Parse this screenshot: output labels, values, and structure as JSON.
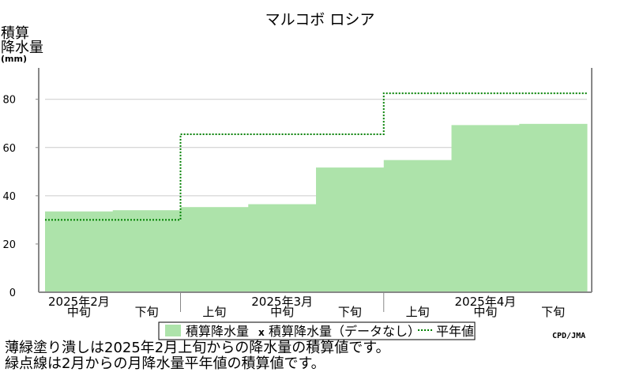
{
  "title": "マルコボ ロシア",
  "ylabel_lines": [
    "積算",
    "降水量",
    "(mm)"
  ],
  "footnotes": [
    "薄緑塗り潰しは2025年2月上旬からの降水量の積算値です。",
    "緑点線は2月からの月降水量平年値の積算値です。"
  ],
  "credit": "CPD/JMA",
  "colors": {
    "fill": "#ade3aa",
    "normal_line": "#008000",
    "grid": "#cccccc",
    "axis": "#888888"
  },
  "chart_data": {
    "type": "area",
    "title": "マルコボ ロシア",
    "ylabel": "積算降水量(mm)",
    "ylim": [
      0,
      93
    ],
    "yticks": [
      0,
      20,
      40,
      60,
      80
    ],
    "grid": true,
    "legend_position": "bottom-center",
    "legend": [
      {
        "label": "積算降水量",
        "marker": "filled-box"
      },
      {
        "label": "積算降水量（データなし）",
        "marker": "x"
      },
      {
        "label": "平年値",
        "marker": "dotted-line"
      }
    ],
    "periods": [
      "2月中旬",
      "2月下旬",
      "3月上旬",
      "3月中旬",
      "3月下旬",
      "4月上旬",
      "4月中旬",
      "4月下旬"
    ],
    "tick_labels": [
      {
        "dekad": "中旬",
        "month": "2025年2月"
      },
      {
        "dekad": "下旬",
        "month": ""
      },
      {
        "dekad": "上旬",
        "month": ""
      },
      {
        "dekad": "中旬",
        "month": "2025年3月"
      },
      {
        "dekad": "下旬",
        "month": ""
      },
      {
        "dekad": "上旬",
        "month": ""
      },
      {
        "dekad": "中旬",
        "month": "2025年4月"
      },
      {
        "dekad": "下旬",
        "month": ""
      }
    ],
    "series": [
      {
        "name": "積算降水量",
        "values": [
          33.5,
          34.0,
          35.3,
          36.5,
          51.7,
          54.8,
          69.3,
          69.8
        ]
      },
      {
        "name": "平年値",
        "values": [
          30,
          30,
          65.5,
          65.5,
          65.5,
          82.5,
          82.5,
          82.5
        ]
      }
    ]
  }
}
